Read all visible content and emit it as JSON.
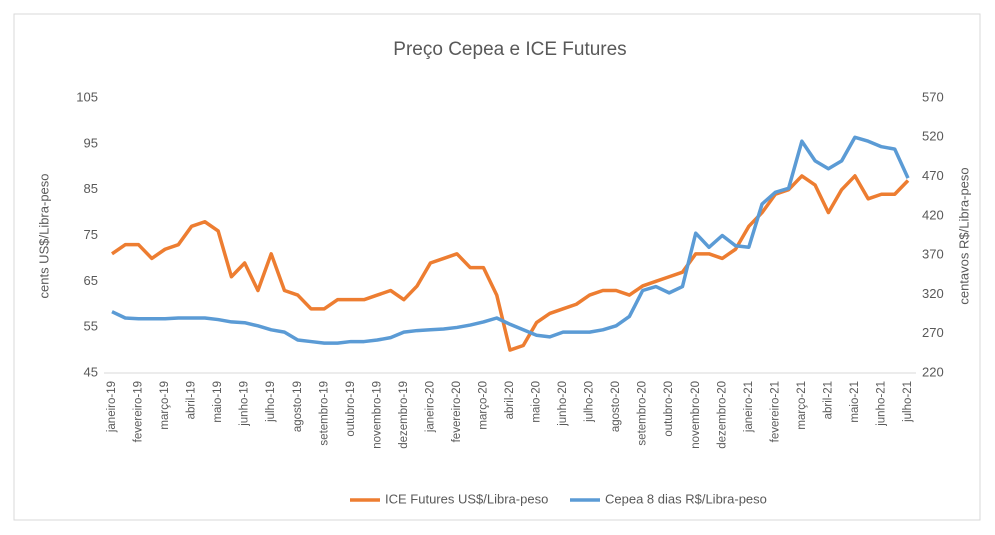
{
  "chart_data": {
    "type": "line",
    "title": "Preço Cepea e ICE Futures",
    "y_label": "cents US$/Libra-peso",
    "y2_label": "centavos R$/Libra-peso",
    "categories": [
      "janeiro-19",
      null,
      "fevereiro-19",
      null,
      "março-19",
      null,
      "abril-19",
      null,
      "maio-19",
      null,
      "junho-19",
      null,
      "julho-19",
      null,
      "agosto-19",
      null,
      "setembro-19",
      null,
      "outubro-19",
      null,
      "novembro-19",
      null,
      "dezembro-19",
      null,
      "janeiro-20",
      null,
      "fevereiro-20",
      null,
      "março-20",
      null,
      "abril-20",
      null,
      "maio-20",
      null,
      "junho-20",
      null,
      "julho-20",
      null,
      "agosto-20",
      null,
      "setembro-20",
      null,
      "outubro-20",
      null,
      "novembro-20",
      null,
      "dezembro-20",
      null,
      "janeiro-21",
      null,
      "fevereiro-21",
      null,
      "março-21",
      null,
      "abril-21",
      null,
      "maio-21",
      null,
      "junho-21",
      null,
      "julho-21"
    ],
    "series": [
      {
        "name": "ICE Futures US$/Libra-peso",
        "color": "#ed7d31",
        "values": [
          71,
          73,
          73,
          70,
          72,
          73,
          77,
          78,
          76,
          66,
          69,
          63,
          71,
          63,
          62,
          59,
          59,
          61,
          61,
          61,
          62,
          63,
          61,
          64,
          69,
          70,
          71,
          68,
          68,
          62,
          50,
          51,
          56,
          58,
          59,
          60,
          62,
          63,
          63,
          62,
          64,
          65,
          66,
          67,
          71,
          71,
          70,
          72,
          77,
          80,
          84,
          85,
          88,
          86,
          80,
          85,
          88,
          83,
          84,
          84,
          87
        ]
      },
      {
        "name": "Cepea 8 dias R$/Libra-peso",
        "color": "#5b9bd5",
        "axis": "y2",
        "values": [
          298,
          290,
          289,
          289,
          289,
          290,
          290,
          290,
          288,
          285,
          284,
          280,
          275,
          272,
          262,
          260,
          258,
          258,
          260,
          260,
          262,
          265,
          272,
          274,
          275,
          276,
          278,
          281,
          285,
          290,
          282,
          275,
          268,
          266,
          272,
          272,
          272,
          275,
          280,
          292,
          325,
          330,
          322,
          330,
          398,
          380,
          395,
          382,
          380,
          435,
          450,
          455,
          515,
          490,
          480,
          490,
          520,
          515,
          508,
          505,
          468
        ]
      }
    ],
    "ylim": [
      45,
      105
    ],
    "yticks": [
      45,
      55,
      65,
      75,
      85,
      95,
      105
    ],
    "y2lim": [
      220,
      570
    ],
    "y2ticks": [
      220,
      270,
      320,
      370,
      420,
      470,
      520,
      570
    ],
    "legend": "bottom"
  }
}
